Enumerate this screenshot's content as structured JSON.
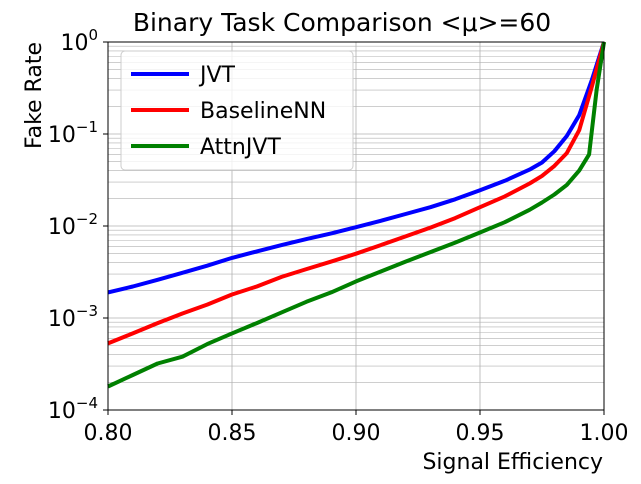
{
  "chart_data": {
    "type": "line",
    "title": "Binary Task Comparison <μ>=60",
    "xlabel": "Signal Efficiency",
    "ylabel": "Fake Rate",
    "xlim": [
      0.8,
      1.0
    ],
    "ylim": [
      0.0001,
      1
    ],
    "yscale": "log",
    "grid": true,
    "legend_position": "top-left",
    "x_ticks": [
      {
        "value": 0.8,
        "label": "0.80"
      },
      {
        "value": 0.85,
        "label": "0.85"
      },
      {
        "value": 0.9,
        "label": "0.90"
      },
      {
        "value": 0.95,
        "label": "0.95"
      },
      {
        "value": 1.0,
        "label": "1.00"
      }
    ],
    "y_ticks": [
      {
        "value": 0.0001,
        "base": "10",
        "exp": "−4"
      },
      {
        "value": 0.001,
        "base": "10",
        "exp": "−3"
      },
      {
        "value": 0.01,
        "base": "10",
        "exp": "−2"
      },
      {
        "value": 0.1,
        "base": "10",
        "exp": "−1"
      },
      {
        "value": 1,
        "base": "10",
        "exp": "0"
      }
    ],
    "series": [
      {
        "name": "JVT",
        "color": "#0000ff",
        "points": [
          [
            0.8,
            0.0019
          ],
          [
            0.81,
            0.0022
          ],
          [
            0.82,
            0.0026
          ],
          [
            0.83,
            0.0031
          ],
          [
            0.84,
            0.0037
          ],
          [
            0.85,
            0.0045
          ],
          [
            0.86,
            0.0053
          ],
          [
            0.87,
            0.0062
          ],
          [
            0.88,
            0.0072
          ],
          [
            0.89,
            0.0083
          ],
          [
            0.9,
            0.0097
          ],
          [
            0.91,
            0.0114
          ],
          [
            0.92,
            0.0135
          ],
          [
            0.93,
            0.016
          ],
          [
            0.94,
            0.0195
          ],
          [
            0.95,
            0.0245
          ],
          [
            0.96,
            0.031
          ],
          [
            0.97,
            0.041
          ],
          [
            0.975,
            0.049
          ],
          [
            0.98,
            0.065
          ],
          [
            0.985,
            0.095
          ],
          [
            0.99,
            0.16
          ],
          [
            0.995,
            0.38
          ],
          [
            1.0,
            1.0
          ]
        ]
      },
      {
        "name": "BaselineNN",
        "color": "#ff0000",
        "points": [
          [
            0.8,
            0.00053
          ],
          [
            0.81,
            0.00068
          ],
          [
            0.82,
            0.00088
          ],
          [
            0.83,
            0.00112
          ],
          [
            0.84,
            0.0014
          ],
          [
            0.85,
            0.0018
          ],
          [
            0.86,
            0.0022
          ],
          [
            0.87,
            0.0028
          ],
          [
            0.88,
            0.0034
          ],
          [
            0.89,
            0.0041
          ],
          [
            0.9,
            0.005
          ],
          [
            0.91,
            0.0062
          ],
          [
            0.92,
            0.0077
          ],
          [
            0.93,
            0.0096
          ],
          [
            0.94,
            0.0122
          ],
          [
            0.95,
            0.016
          ],
          [
            0.96,
            0.021
          ],
          [
            0.97,
            0.029
          ],
          [
            0.975,
            0.035
          ],
          [
            0.98,
            0.045
          ],
          [
            0.985,
            0.062
          ],
          [
            0.99,
            0.11
          ],
          [
            0.995,
            0.32
          ],
          [
            1.0,
            1.0
          ]
        ]
      },
      {
        "name": "AttnJVT",
        "color": "#008000",
        "points": [
          [
            0.8,
            0.00018
          ],
          [
            0.81,
            0.00024
          ],
          [
            0.82,
            0.00032
          ],
          [
            0.83,
            0.00038
          ],
          [
            0.84,
            0.00052
          ],
          [
            0.85,
            0.00068
          ],
          [
            0.86,
            0.00088
          ],
          [
            0.87,
            0.00115
          ],
          [
            0.88,
            0.0015
          ],
          [
            0.89,
            0.0019
          ],
          [
            0.9,
            0.0025
          ],
          [
            0.91,
            0.0032
          ],
          [
            0.92,
            0.0041
          ],
          [
            0.93,
            0.0052
          ],
          [
            0.94,
            0.0066
          ],
          [
            0.95,
            0.0085
          ],
          [
            0.96,
            0.011
          ],
          [
            0.97,
            0.015
          ],
          [
            0.975,
            0.018
          ],
          [
            0.98,
            0.022
          ],
          [
            0.985,
            0.028
          ],
          [
            0.99,
            0.04
          ],
          [
            0.994,
            0.06
          ],
          [
            0.997,
            0.3
          ],
          [
            1.0,
            1.0
          ]
        ]
      }
    ]
  }
}
